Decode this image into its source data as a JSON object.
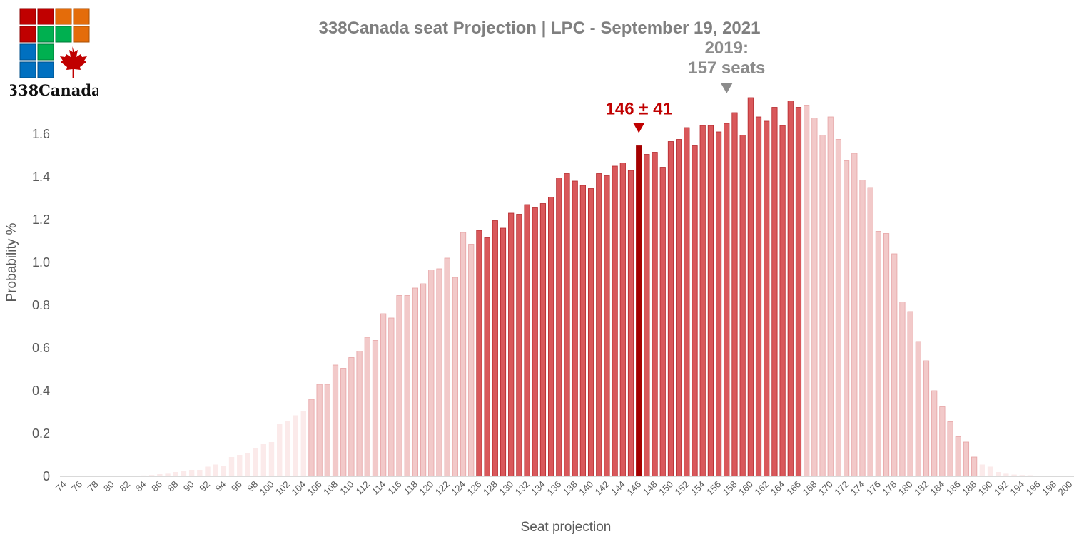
{
  "logo": {
    "text": "338Canada",
    "icon": "maple-leaf-icon",
    "tile_colors": [
      "#c00000",
      "#e46c0a",
      "#00b050",
      "#0070c0"
    ]
  },
  "chart_data": {
    "type": "bar",
    "title": "338Canada seat Projection | LPC - September 19, 2021",
    "xlabel": "Seat projection",
    "ylabel": "Probability %",
    "ylim": [
      0,
      1.8
    ],
    "yticks": [
      0,
      0.2,
      0.4,
      0.6,
      0.8,
      1.0,
      1.2,
      1.4,
      1.6
    ],
    "ytick_labels": [
      "0",
      "0.2",
      "0.4",
      "0.6",
      "0.8",
      "1.0",
      "1.2",
      "1.4",
      "1.6"
    ],
    "x": [
      74,
      75,
      76,
      77,
      78,
      79,
      80,
      81,
      82,
      83,
      84,
      85,
      86,
      87,
      88,
      89,
      90,
      91,
      92,
      93,
      94,
      95,
      96,
      97,
      98,
      99,
      100,
      101,
      102,
      103,
      104,
      105,
      106,
      107,
      108,
      109,
      110,
      111,
      112,
      113,
      114,
      115,
      116,
      117,
      118,
      119,
      120,
      121,
      122,
      123,
      124,
      125,
      126,
      127,
      128,
      129,
      130,
      131,
      132,
      133,
      134,
      135,
      136,
      137,
      138,
      139,
      140,
      141,
      142,
      143,
      144,
      145,
      146,
      147,
      148,
      149,
      150,
      151,
      152,
      153,
      154,
      155,
      156,
      157,
      158,
      159,
      160,
      161,
      162,
      163,
      164,
      165,
      166,
      167,
      168,
      169,
      170,
      171,
      172,
      173,
      174,
      175,
      176,
      177,
      178,
      179,
      180,
      181,
      182,
      183,
      184,
      185,
      186,
      187,
      188,
      189,
      190,
      191,
      192,
      193,
      194,
      195,
      196,
      197,
      198,
      199,
      200
    ],
    "xtick_labels": [
      "74",
      "76",
      "78",
      "80",
      "82",
      "84",
      "86",
      "88",
      "90",
      "92",
      "94",
      "96",
      "98",
      "100",
      "102",
      "104",
      "106",
      "108",
      "110",
      "112",
      "114",
      "116",
      "118",
      "120",
      "122",
      "124",
      "126",
      "128",
      "130",
      "132",
      "134",
      "136",
      "138",
      "140",
      "142",
      "144",
      "146",
      "148",
      "150",
      "152",
      "154",
      "156",
      "158",
      "160",
      "162",
      "164",
      "166",
      "168",
      "170",
      "172",
      "174",
      "176",
      "178",
      "180",
      "182",
      "184",
      "186",
      "188",
      "190",
      "192",
      "194",
      "196",
      "198",
      "200"
    ],
    "values": [
      0,
      0,
      0,
      0,
      0,
      0,
      0,
      0,
      0.002,
      0.003,
      0.004,
      0.006,
      0.01,
      0.012,
      0.02,
      0.025,
      0.03,
      0.03,
      0.045,
      0.055,
      0.05,
      0.09,
      0.1,
      0.11,
      0.13,
      0.15,
      0.16,
      0.245,
      0.26,
      0.285,
      0.305,
      0.36,
      0.43,
      0.43,
      0.52,
      0.505,
      0.555,
      0.585,
      0.65,
      0.635,
      0.76,
      0.74,
      0.845,
      0.845,
      0.88,
      0.9,
      0.965,
      0.97,
      1.02,
      0.93,
      1.14,
      1.085,
      1.15,
      1.115,
      1.195,
      1.16,
      1.23,
      1.225,
      1.27,
      1.255,
      1.275,
      1.305,
      1.395,
      1.415,
      1.38,
      1.36,
      1.345,
      1.415,
      1.405,
      1.45,
      1.465,
      1.43,
      1.545,
      1.505,
      1.515,
      1.445,
      1.565,
      1.575,
      1.63,
      1.545,
      1.64,
      1.64,
      1.61,
      1.65,
      1.7,
      1.595,
      1.77,
      1.68,
      1.66,
      1.725,
      1.64,
      1.755,
      1.725,
      1.735,
      1.675,
      1.595,
      1.68,
      1.575,
      1.475,
      1.51,
      1.385,
      1.35,
      1.145,
      1.135,
      1.04,
      0.815,
      0.77,
      0.63,
      0.54,
      0.4,
      0.325,
      0.255,
      0.185,
      0.16,
      0.09,
      0.055,
      0.045,
      0.02,
      0.012,
      0.008,
      0.006,
      0.005,
      0.003,
      0.002,
      0,
      0,
      0
    ],
    "projection": {
      "label": "146 ± 41",
      "median": 146,
      "core_range": [
        126,
        166
      ],
      "wide_range": [
        105,
        188
      ]
    },
    "previous_result": {
      "label_line1": "2019:",
      "label_line2": "157 seats",
      "seats": 157
    },
    "colors": {
      "median": "#a50000",
      "core": "#d9585b",
      "core_edge": "#b5282c",
      "wide": "#f2c9c9",
      "wide_edge": "#e6a3a5",
      "tail": "#fbeaea",
      "annotation_main": "#c00000",
      "annotation_prev": "#8c8c8c",
      "title": "#7f7f7f",
      "text": "#595959",
      "axis": "#d9d9d9"
    }
  }
}
